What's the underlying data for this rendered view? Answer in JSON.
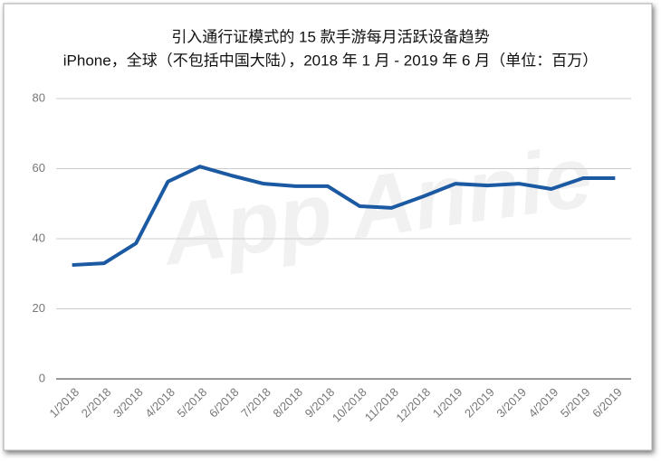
{
  "chart_data": {
    "type": "line",
    "title": "引入通行证模式的 15 款手游每月活跃设备趋势",
    "subtitle": "iPhone，全球（不包括中国大陆），2018 年 1 月 - 2019 年 6 月（单位：百万）",
    "watermark": "App Annie",
    "categories": [
      "1/2018",
      "2/2018",
      "3/2018",
      "4/2018",
      "5/2018",
      "6/2018",
      "7/2018",
      "8/2018",
      "9/2018",
      "10/2018",
      "11/2018",
      "12/2018",
      "1/2019",
      "2/2019",
      "3/2019",
      "4/2019",
      "5/2019",
      "6/2019"
    ],
    "series": [
      {
        "color": "#1b5aa2",
        "values": [
          32.5,
          33,
          38.7,
          56.3,
          60.6,
          58,
          55.7,
          55,
          55,
          49.3,
          48.8,
          52.1,
          55.7,
          55.2,
          55.7,
          54.2,
          57.3,
          57.3
        ]
      }
    ],
    "ylim": [
      0,
      80
    ],
    "yticks": [
      0,
      20,
      40,
      60,
      80
    ],
    "grid": true
  }
}
